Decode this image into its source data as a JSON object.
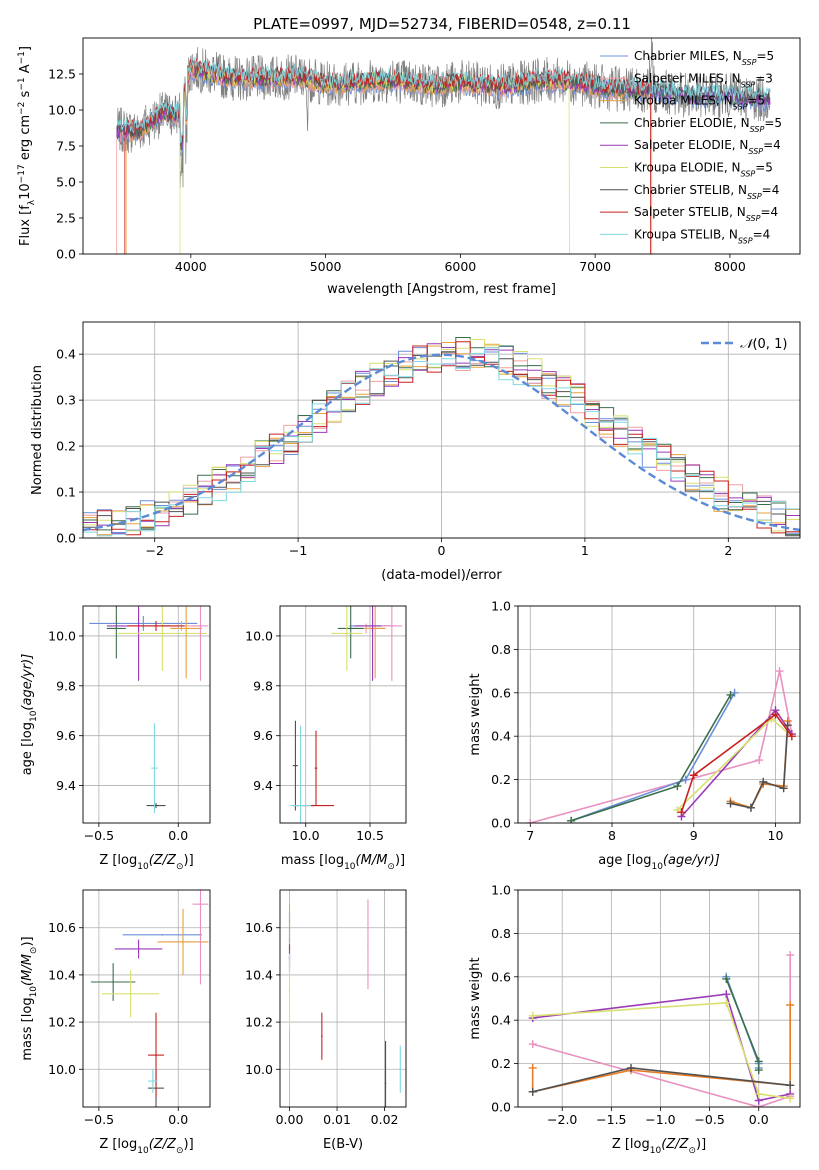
{
  "figure_title": "PLATE=0997, MJD=52734, FIBERID=0548, z=0.11",
  "colors": {
    "models": [
      "#6a8fd8",
      "#f0a0a0",
      "#e8a040",
      "#3a6e4a",
      "#9a3ab8",
      "#d8e070",
      "#505050",
      "#c82020",
      "#80d8e0"
    ],
    "spectrum": "#808080",
    "gaussian": "#5b8bd6",
    "pink": "#e890c0",
    "orange": "#e87e28"
  },
  "chart_data": [
    {
      "id": "spectrum",
      "type": "line",
      "xlabel": "wavelength [Angstrom, rest frame]",
      "ylabel": "Flux [f",
      "ylabel_parts": [
        "Flux [f",
        "λ",
        "10",
        "−17",
        " erg cm",
        "−2",
        " s",
        "−1",
        " A",
        "−1",
        "]"
      ],
      "xlim": [
        3200,
        8520
      ],
      "ylim": [
        0,
        15
      ],
      "xticks": [
        4000,
        5000,
        6000,
        7000,
        8000
      ],
      "xtick_labels": [
        "4000",
        "5000",
        "6000",
        "7000",
        "8000"
      ],
      "yticks": [
        0,
        2.5,
        5,
        7.5,
        10,
        12.5
      ],
      "ytick_labels": [
        "0.0",
        "2.5",
        "5.0",
        "7.5",
        "10.0",
        "12.5"
      ],
      "legend_position": "right",
      "legend": [
        {
          "name": "Chabrier MILES, N",
          "sub": "SSP",
          "val": "=5"
        },
        {
          "name": "Salpeter MILES, N",
          "sub": "SSP",
          "val": "=3"
        },
        {
          "name": "Kroupa MILES, N",
          "sub": "SSP",
          "val": "=5"
        },
        {
          "name": "Chabrier ELODIE, N",
          "sub": "SSP",
          "val": "=5"
        },
        {
          "name": "Salpeter ELODIE, N",
          "sub": "SSP",
          "val": "=4"
        },
        {
          "name": "Kroupa ELODIE, N",
          "sub": "SSP",
          "val": "=5"
        },
        {
          "name": "Chabrier STELIB, N",
          "sub": "SSP",
          "val": "=4"
        },
        {
          "name": "Salpeter STELIB, N",
          "sub": "SSP",
          "val": "=4"
        },
        {
          "name": "Kroupa STELIB, N",
          "sub": "SSP",
          "val": "=4"
        }
      ],
      "continuum": [
        [
          3450,
          8.6
        ],
        [
          3600,
          8.5
        ],
        [
          3700,
          9.2
        ],
        [
          3800,
          9.8
        ],
        [
          3900,
          9.6
        ],
        [
          4000,
          12.9
        ],
        [
          4100,
          12.7
        ],
        [
          4300,
          12.2
        ],
        [
          4500,
          12.2
        ],
        [
          4800,
          12.3
        ],
        [
          5000,
          11.8
        ],
        [
          5200,
          11.9
        ],
        [
          5500,
          12.1
        ],
        [
          5800,
          11.7
        ],
        [
          6000,
          11.9
        ],
        [
          6300,
          11.6
        ],
        [
          6600,
          12.1
        ],
        [
          6800,
          12.0
        ],
        [
          7100,
          11.5
        ],
        [
          7400,
          11.4
        ],
        [
          7700,
          11.0
        ],
        [
          8000,
          11.0
        ],
        [
          8300,
          10.7
        ]
      ],
      "model_cutoffs": [
        {
          "series": 1,
          "from": 3450,
          "to": 7410
        },
        {
          "series": 2,
          "from": 3520,
          "to": 7420
        },
        {
          "series": 5,
          "from": 3920,
          "to": 6810
        },
        {
          "series": 7,
          "from": 3510,
          "to": 7410
        }
      ]
    },
    {
      "id": "residuals",
      "type": "line",
      "xlabel": "(data-model)/error",
      "ylabel": "Normed distribution",
      "xlim": [
        -2.5,
        2.5
      ],
      "ylim": [
        0,
        0.47
      ],
      "xticks": [
        -2,
        -1,
        0,
        1,
        2
      ],
      "xtick_labels": [
        "−2",
        "−1",
        "0",
        "1",
        "2"
      ],
      "yticks": [
        0,
        0.1,
        0.2,
        0.3,
        0.4
      ],
      "ytick_labels": [
        "0.0",
        "0.1",
        "0.2",
        "0.3",
        "0.4"
      ],
      "grid": true,
      "legend_position": "top-right",
      "gaussian_label_parts": [
        "𝒩",
        "(0, 1)"
      ],
      "gaussian": {
        "mu": 0,
        "sigma": 1
      },
      "bins": {
        "start": -2.5,
        "width": 0.1
      }
    },
    {
      "id": "age_vs_Z",
      "type": "scatter",
      "xlabel_parts": [
        "Z [log",
        "10",
        "(Z/Z",
        "⊙",
        ")]"
      ],
      "ylabel_parts": [
        "age  [log",
        "10",
        "(age/yr)]"
      ],
      "xlim": [
        -0.6,
        0.2
      ],
      "ylim": [
        9.25,
        10.12
      ],
      "xticks": [
        -0.5,
        0.0
      ],
      "xtick_labels": [
        "−0.5",
        "0.0"
      ],
      "yticks": [
        9.4,
        9.6,
        9.8,
        10.0
      ],
      "ytick_labels": [
        "9.4",
        "9.6",
        "9.8",
        "10.0"
      ],
      "grid": true,
      "points": [
        {
          "c": 0,
          "x": -0.22,
          "y": 10.05,
          "xerr": 0.34,
          "yerr": 0.03
        },
        {
          "c": 1,
          "x": 0.02,
          "y": 10.04,
          "xerr": 0.14,
          "yerr": 0.02
        },
        {
          "c": 2,
          "x": 0.05,
          "y": 10.03,
          "xerr": 0.1,
          "yerr": 0.2
        },
        {
          "c": 3,
          "x": -0.39,
          "y": 10.03,
          "xerr": 0.06,
          "yerr": 0.12
        },
        {
          "c": 4,
          "x": -0.25,
          "y": 10.04,
          "xerr": 0.2,
          "yerr": 0.22
        },
        {
          "c": 5,
          "x": -0.1,
          "y": 10.01,
          "xerr": 0.28,
          "yerr": 0.15
        },
        {
          "c": 6,
          "x": -0.14,
          "y": 9.32,
          "xerr": 0.06,
          "yerr": 0.01
        },
        {
          "c": 7,
          "x": -0.14,
          "y": 10.04,
          "xerr": 0.18,
          "yerr": 0.02
        },
        {
          "c": 8,
          "x": -0.15,
          "y": 9.47,
          "xerr": 0.02,
          "yerr": 0.18
        },
        {
          "c": "pink",
          "x": 0.14,
          "y": 10.04,
          "xerr": 0.05,
          "yerr": 0.22
        }
      ]
    },
    {
      "id": "age_vs_mass",
      "type": "scatter",
      "xlabel_parts": [
        "mass [log",
        "10",
        "(M/M",
        "⊙",
        ")]"
      ],
      "xlim": [
        9.8,
        10.78
      ],
      "ylim": [
        9.25,
        10.12
      ],
      "xticks": [
        10.0,
        10.5
      ],
      "xtick_labels": [
        "10.0",
        "10.5"
      ],
      "yticks": [
        9.4,
        9.6,
        9.8,
        10.0
      ],
      "ytick_labels": [
        "9.4",
        "9.6",
        "9.8",
        "10.0"
      ],
      "grid": true,
      "points": [
        {
          "c": 0,
          "x": 10.52,
          "y": 10.04,
          "xerr": 0.18,
          "yerr": 0.03
        },
        {
          "c": 1,
          "x": 10.47,
          "y": 10.03,
          "xerr": 0.15,
          "yerr": 0.02
        },
        {
          "c": 2,
          "x": 10.54,
          "y": 10.03,
          "xerr": 0.08,
          "yerr": 0.2
        },
        {
          "c": 3,
          "x": 10.35,
          "y": 10.03,
          "xerr": 0.1,
          "yerr": 0.12
        },
        {
          "c": 4,
          "x": 10.52,
          "y": 10.04,
          "xerr": 0.14,
          "yerr": 0.22
        },
        {
          "c": 5,
          "x": 10.32,
          "y": 10.01,
          "xerr": 0.12,
          "yerr": 0.15
        },
        {
          "c": 6,
          "x": 9.92,
          "y": 9.48,
          "xerr": 0.02,
          "yerr": 0.18
        },
        {
          "c": 7,
          "x": 10.08,
          "y": 9.47,
          "xerr": 0.01,
          "yerr": 0.15
        },
        {
          "c": "red_h",
          "x": 10.06,
          "y": 9.32,
          "xerr": 0.16,
          "yerr": 0.0
        },
        {
          "c": 8,
          "x": 9.96,
          "y": 9.32,
          "xerr": 0.08,
          "yerr": 0.32
        },
        {
          "c": "pink",
          "x": 10.67,
          "y": 10.04,
          "xerr": 0.08,
          "yerr": 0.22
        }
      ]
    },
    {
      "id": "massweight_vs_age",
      "type": "line",
      "xlabel_parts": [
        "age  [log",
        "10",
        "(age/yr)]"
      ],
      "ylabel": "mass weight",
      "xlim": [
        6.85,
        10.3
      ],
      "ylim": [
        0,
        1.0
      ],
      "xticks": [
        7,
        8,
        9,
        10
      ],
      "xtick_labels": [
        "7",
        "8",
        "9",
        "10"
      ],
      "yticks": [
        0,
        0.2,
        0.4,
        0.6,
        0.8,
        1.0
      ],
      "ytick_labels": [
        "0.0",
        "0.2",
        "0.4",
        "0.6",
        "0.8",
        "1.0"
      ],
      "grid": true,
      "series": [
        {
          "c": "pink",
          "x": [
            7.0,
            9.8,
            10.05,
            10.2
          ],
          "y": [
            0.0,
            0.29,
            0.7,
            0.41
          ]
        },
        {
          "c": 0,
          "x": 7.5,
          "x_list": [
            7.5,
            8.9,
            9.5
          ],
          "y": [
            0.01,
            0.2,
            0.6
          ]
        },
        {
          "c": 3,
          "x_list": [
            7.5,
            8.8,
            9.45
          ],
          "y": [
            0.01,
            0.17,
            0.59
          ]
        },
        {
          "c": 4,
          "x_list": [
            8.85,
            10.0,
            10.2
          ],
          "y": [
            0.03,
            0.52,
            0.41
          ]
        },
        {
          "c": 5,
          "x_list": [
            8.8,
            9.95,
            10.2
          ],
          "y": [
            0.06,
            0.48,
            0.4
          ]
        },
        {
          "c": "orange",
          "x_list": [
            9.45,
            9.7,
            9.85,
            10.1,
            10.15
          ],
          "y": [
            0.1,
            0.07,
            0.18,
            0.17,
            0.47
          ]
        },
        {
          "c": 6,
          "x_list": [
            9.45,
            9.7,
            9.85,
            10.1,
            10.15
          ],
          "y": [
            0.09,
            0.07,
            0.19,
            0.16,
            0.45
          ]
        },
        {
          "c": 7,
          "x_list": [
            8.85,
            9.0,
            10.0,
            10.2
          ],
          "y": [
            0.05,
            0.22,
            0.5,
            0.4
          ]
        }
      ]
    },
    {
      "id": "mass_vs_Z",
      "type": "scatter",
      "xlabel_parts": [
        "Z [log",
        "10",
        "(Z/Z",
        "⊙",
        ")]"
      ],
      "ylabel_parts": [
        "mass [log",
        "10",
        "(M/M",
        "⊙",
        ")]"
      ],
      "xlim": [
        -0.6,
        0.2
      ],
      "ylim": [
        9.84,
        10.76
      ],
      "xticks": [
        -0.5,
        0.0
      ],
      "xtick_labels": [
        "−0.5",
        "0.0"
      ],
      "yticks": [
        10.0,
        10.2,
        10.4,
        10.6
      ],
      "ytick_labels": [
        "10.0",
        "10.2",
        "10.4",
        "10.6"
      ],
      "grid": true,
      "points": [
        {
          "c": 0,
          "x": -0.1,
          "y": 10.57,
          "xerr": 0.25,
          "yerr": 0.0
        },
        {
          "c": 1,
          "x": 0.0,
          "y": 10.54,
          "xerr": 0.1,
          "yerr": 0.0
        },
        {
          "c": 2,
          "x": 0.03,
          "y": 10.54,
          "xerr": 0.16,
          "yerr": 0.14
        },
        {
          "c": 3,
          "x": -0.41,
          "y": 10.37,
          "xerr": 0.14,
          "yerr": 0.08
        },
        {
          "c": 4,
          "x": -0.25,
          "y": 10.51,
          "xerr": 0.15,
          "yerr": 0.04
        },
        {
          "c": 5,
          "x": -0.3,
          "y": 10.32,
          "xerr": 0.18,
          "yerr": 0.1
        },
        {
          "c": 6,
          "x": -0.14,
          "y": 9.92,
          "xerr": 0.05,
          "yerr": 0.08
        },
        {
          "c": 7,
          "x": -0.14,
          "y": 10.06,
          "xerr": 0.05,
          "yerr": 0.18
        },
        {
          "c": 8,
          "x": -0.16,
          "y": 9.95,
          "xerr": 0.03,
          "yerr": 0.05
        },
        {
          "c": "pink",
          "x": 0.14,
          "y": 10.7,
          "xerr": 0.05,
          "yerr": 0.34
        }
      ]
    },
    {
      "id": "mass_vs_EBV",
      "type": "scatter",
      "xlabel": "E(B-V)",
      "xlim": [
        -0.002,
        0.0245
      ],
      "ylim": [
        9.84,
        10.76
      ],
      "xticks": [
        0.0,
        0.01,
        0.02
      ],
      "xtick_labels": [
        "0.00",
        "0.01",
        "0.02"
      ],
      "yticks": [
        10.0,
        10.2,
        10.4,
        10.6
      ],
      "ytick_labels": [
        "10.0",
        "10.2",
        "10.4",
        "10.6"
      ],
      "grid": true,
      "points": [
        {
          "c": 0,
          "x": 0.0,
          "y": 10.55,
          "xerr": 0.0,
          "yerr": 0.12
        },
        {
          "c": 2,
          "x": 0.0,
          "y": 10.6,
          "xerr": 0.0,
          "yerr": 0.1
        },
        {
          "c": 4,
          "x": 0.0,
          "y": 10.47,
          "xerr": 0.0,
          "yerr": 0.06
        },
        {
          "c": 5,
          "x": 0.0,
          "y": 10.33,
          "xerr": 0.0,
          "yerr": 0.16
        },
        {
          "c": 7,
          "x": 0.0068,
          "y": 10.14,
          "xerr": 0.0,
          "yerr": 0.1
        },
        {
          "c": "pink",
          "x": 0.0165,
          "y": 10.53,
          "xerr": 0.0,
          "yerr": 0.19
        },
        {
          "c": 6,
          "x": 0.0202,
          "y": 9.94,
          "xerr": 0.0,
          "yerr": 0.18
        },
        {
          "c": 8,
          "x": 0.0233,
          "y": 10.0,
          "xerr": 0.0,
          "yerr": 0.1
        }
      ]
    },
    {
      "id": "massweight_vs_Z",
      "type": "line",
      "xlabel_parts": [
        "Z [log",
        "10",
        "(Z/Z",
        "⊙",
        ")]"
      ],
      "ylabel": "mass weight",
      "xlim": [
        -2.45,
        0.42
      ],
      "ylim": [
        0,
        1.0
      ],
      "xticks": [
        -2.0,
        -1.5,
        -1.0,
        -0.5,
        0.0
      ],
      "xtick_labels": [
        "−2.0",
        "−1.5",
        "−1.0",
        "−0.5",
        "0.0"
      ],
      "yticks": [
        0,
        0.2,
        0.4,
        0.6,
        0.8,
        1.0
      ],
      "ytick_labels": [
        "0.0",
        "0.2",
        "0.4",
        "0.6",
        "0.8",
        "1.0"
      ],
      "grid": true,
      "series": [
        {
          "c": "pink",
          "x_list": [
            -2.3,
            0.0,
            0.32,
            0.32
          ],
          "y": [
            0.29,
            0.0,
            0.05,
            0.7
          ]
        },
        {
          "c": 4,
          "x_list": [
            -2.3,
            -0.33,
            0.0,
            0.32
          ],
          "y": [
            0.41,
            0.52,
            0.03,
            0.06
          ]
        },
        {
          "c": 5,
          "x_list": [
            -2.3,
            -0.33,
            0.0,
            0.32
          ],
          "y": [
            0.42,
            0.48,
            0.06,
            0.04
          ]
        },
        {
          "c": 0,
          "x_list": [
            -0.33,
            0.0,
            0.0
          ],
          "y": [
            0.6,
            0.2,
            0.18
          ]
        },
        {
          "c": 3,
          "x_list": [
            -0.33,
            0.0,
            0.0
          ],
          "y": [
            0.59,
            0.21,
            0.17
          ]
        },
        {
          "c": "orange",
          "x_list": [
            -2.3,
            -2.3,
            -1.3,
            0.32,
            0.32
          ],
          "y": [
            0.18,
            0.07,
            0.17,
            0.1,
            0.47
          ]
        },
        {
          "c": 6,
          "x_list": [
            -2.3,
            -1.3,
            0.32
          ],
          "y": [
            0.07,
            0.18,
            0.1
          ]
        }
      ]
    }
  ]
}
